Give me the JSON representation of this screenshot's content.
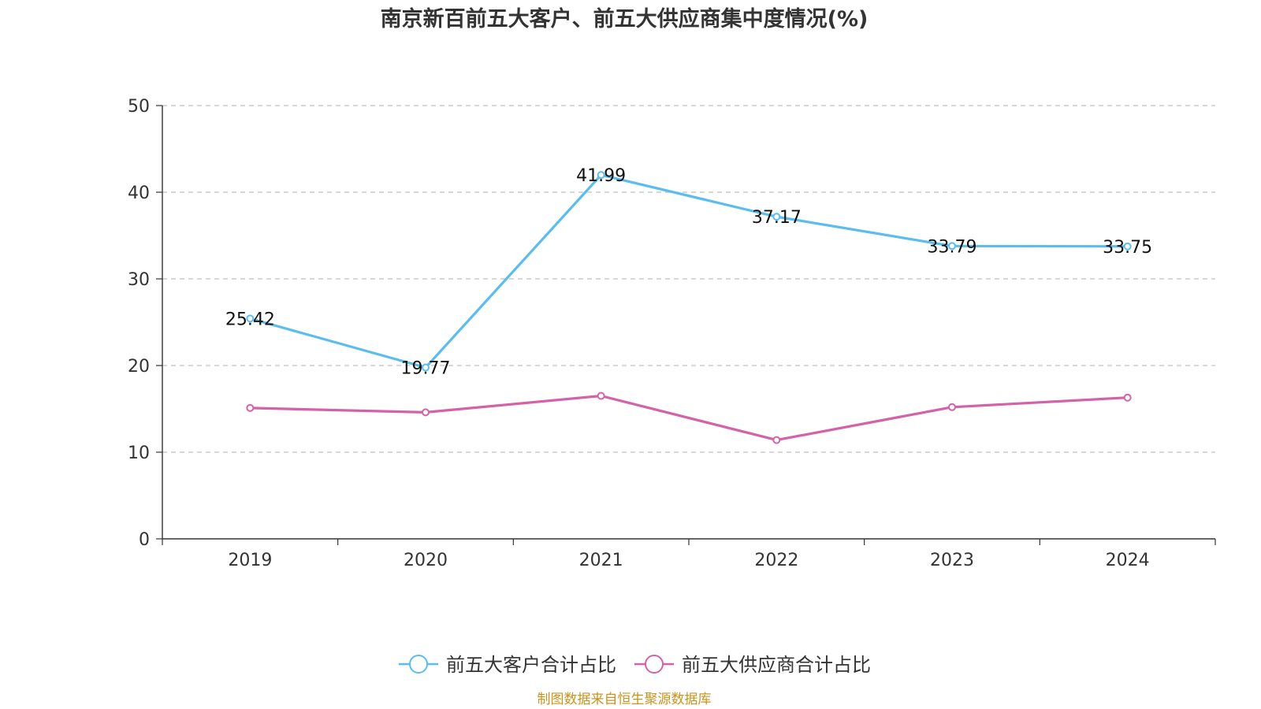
{
  "chart_data": {
    "type": "line",
    "title": "南京新百前五大客户、前五大供应商集中度情况(%)",
    "categories": [
      "2019",
      "2020",
      "2021",
      "2022",
      "2023",
      "2024"
    ],
    "ylim": [
      0,
      50
    ],
    "yticks": [
      "0",
      "10",
      "20",
      "30",
      "40",
      "50"
    ],
    "grid": true,
    "legend_position": "bottom",
    "series": [
      {
        "name": "前五大客户合计占比",
        "color": "#5bbcf0",
        "values": [
          25.42,
          19.77,
          41.99,
          37.17,
          33.79,
          33.75
        ],
        "labels": [
          "25.42",
          "19.77",
          "41.99",
          "37.17",
          "33.79",
          "33.75"
        ],
        "show_labels": true
      },
      {
        "name": "前五大供应商合计占比",
        "color": "#d462a8",
        "values": [
          15.1,
          14.6,
          16.5,
          11.4,
          15.2,
          16.3
        ],
        "labels": [],
        "show_labels": false
      }
    ],
    "source": "制图数据来自恒生聚源数据库"
  }
}
